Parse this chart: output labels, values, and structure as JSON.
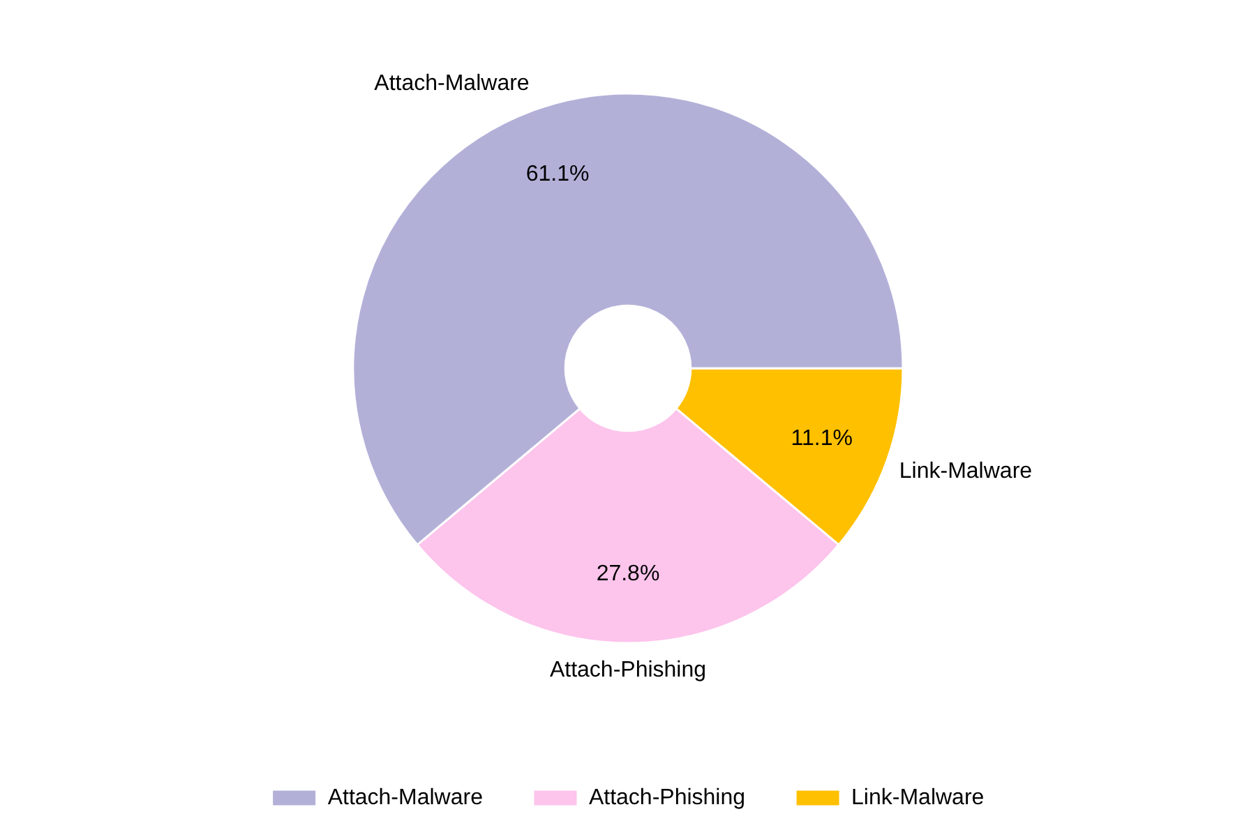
{
  "chart_data": {
    "type": "donut",
    "categories": [
      "Attach-Malware",
      "Attach-Phishing",
      "Link-Malware"
    ],
    "values": [
      61.1,
      27.8,
      11.1
    ],
    "colors": [
      "#b3b0d8",
      "#fdc4ec",
      "#ffc000"
    ],
    "value_labels": [
      "61.1%",
      "27.8%",
      "11.1%"
    ],
    "legend": "bottom"
  }
}
